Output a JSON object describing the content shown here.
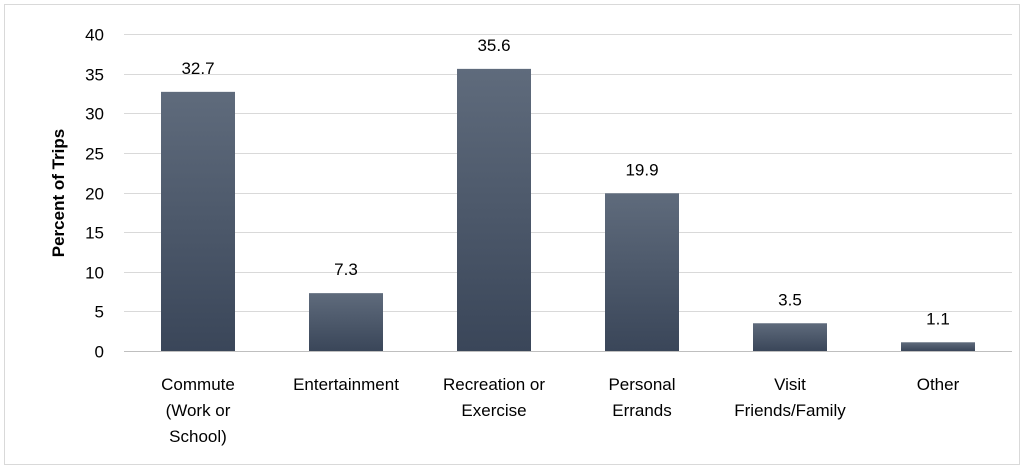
{
  "chart_data": {
    "type": "bar",
    "title": "",
    "xlabel": "",
    "ylabel": "Percent of Trips",
    "ylim": [
      0,
      40
    ],
    "yticks": [
      0,
      5,
      10,
      15,
      20,
      25,
      30,
      35,
      40
    ],
    "grid": true,
    "legend": "none",
    "categories": [
      [
        "Commute",
        "(Work or",
        "School)"
      ],
      [
        "Entertainment"
      ],
      [
        "Recreation or",
        "Exercise"
      ],
      [
        "Personal",
        "Errands"
      ],
      [
        "Visit",
        "Friends/Family"
      ],
      [
        "Other"
      ]
    ],
    "values": [
      32.7,
      7.3,
      35.6,
      19.9,
      3.5,
      1.1
    ],
    "data_labels": [
      "32.7",
      "7.3",
      "35.6",
      "19.9",
      "3.5",
      "1.1"
    ],
    "colors": {
      "bar_top": "#5f6b7c",
      "bar_bottom": "#3a4659",
      "grid": "#d9d9d9"
    }
  }
}
